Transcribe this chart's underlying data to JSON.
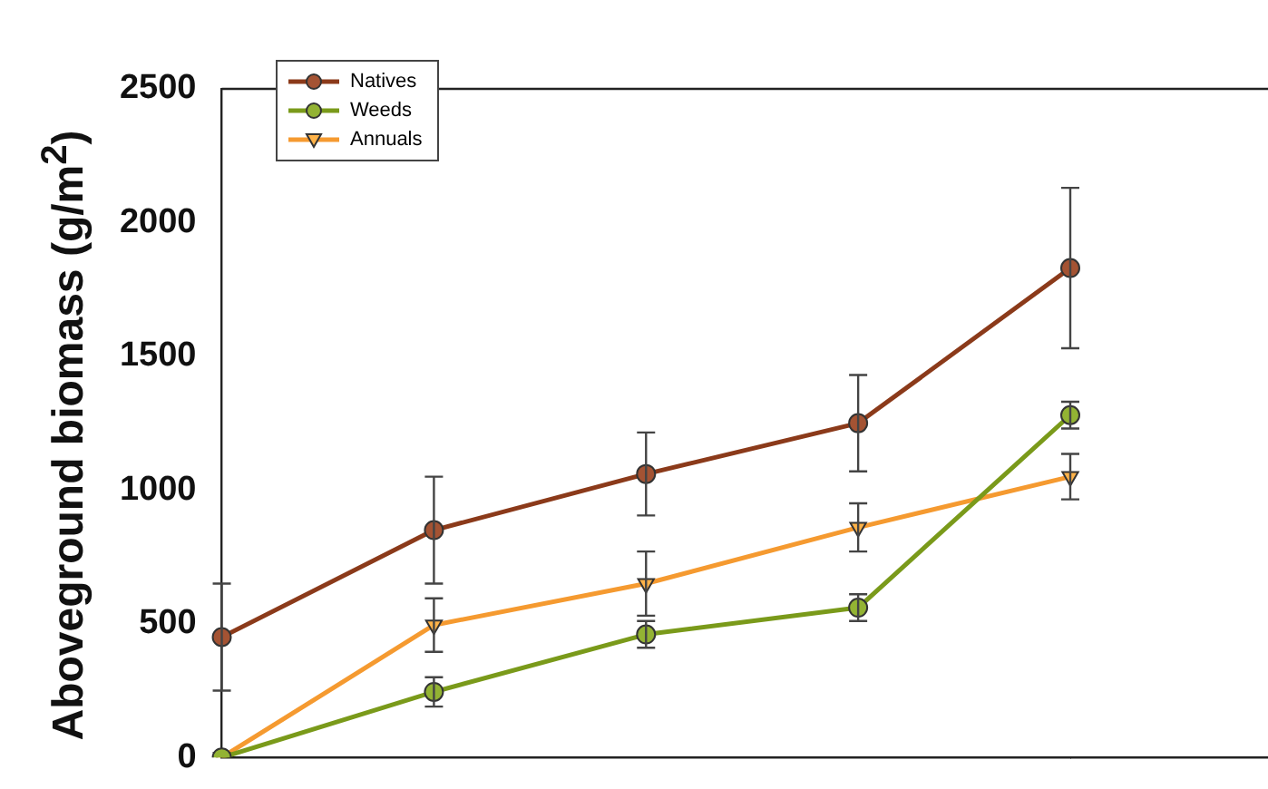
{
  "chart_data": {
    "type": "line",
    "ylabel": "Aboveground biomass (g/m$^{2}$)",
    "categories": [
      null,
      null,
      null,
      null,
      null
    ],
    "ylim": [
      0,
      2500
    ],
    "yticks": [
      0,
      500,
      1000,
      1500,
      2000,
      2500
    ],
    "legend": "top left",
    "tick_labels": "y",
    "line_style": "solid",
    "series": [
      {
        "name": "Natives",
        "color": "#8b3a1a",
        "marker": "circle",
        "values": [
          450,
          850,
          1060,
          1250,
          1830
        ],
        "errors": [
          200,
          200,
          155,
          180,
          300
        ]
      },
      {
        "name": "Weeds",
        "color": "#7a9a1a",
        "marker": "circle",
        "values": [
          0,
          245,
          460,
          560,
          1280
        ],
        "errors": [
          null,
          55,
          50,
          50,
          50
        ]
      },
      {
        "name": "Annuals",
        "color": "#f59a30",
        "marker": "triangle",
        "values": [
          0,
          495,
          650,
          860,
          1050
        ],
        "errors": [
          null,
          100,
          120,
          90,
          85
        ]
      }
    ]
  }
}
